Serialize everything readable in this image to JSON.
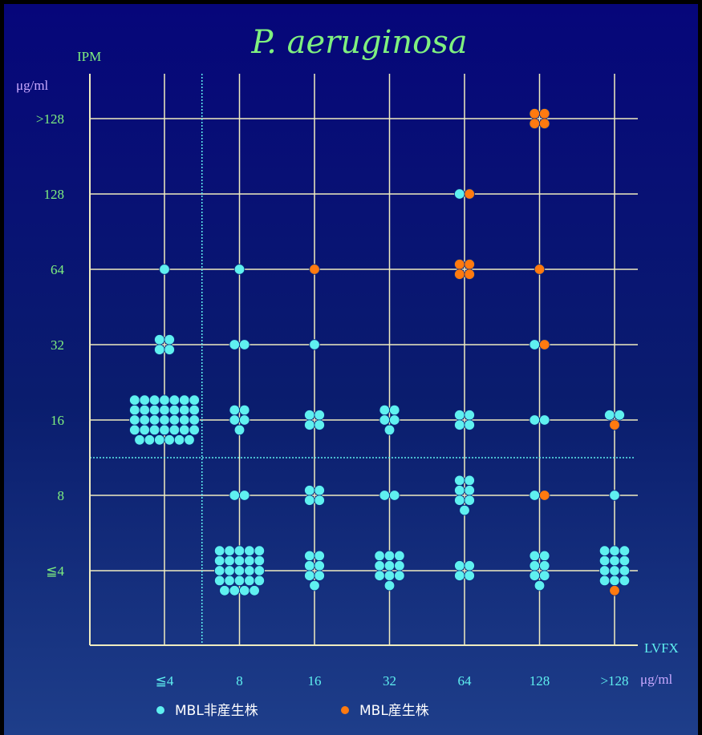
{
  "chart_data": {
    "type": "scatter",
    "title": "P. aeruginosa",
    "ylabel": "IPM",
    "yunit": "μg/ml",
    "xlabel": "LVFX",
    "xunit": "μg/ml",
    "x_categories": [
      "≦4",
      "8",
      "16",
      "32",
      "64",
      "128",
      ">128"
    ],
    "y_categories": [
      "≦4",
      "8",
      "16",
      "32",
      "64",
      "128",
      ">128"
    ],
    "breakpoints": {
      "x_between": [
        "≦4",
        "8"
      ],
      "y_between": [
        "8",
        "16"
      ]
    },
    "grid": true,
    "legend_position": "bottom",
    "series": [
      {
        "name": "MBL非産生株",
        "color": "#5ff0f0",
        "points": [
          {
            "x": "≦4",
            "y": "16",
            "count": 34
          },
          {
            "x": "≦4",
            "y": "32",
            "count": 4
          },
          {
            "x": "≦4",
            "y": "64",
            "count": 1
          },
          {
            "x": "8",
            "y": "≦4",
            "count": 24
          },
          {
            "x": "8",
            "y": "8",
            "count": 2
          },
          {
            "x": "8",
            "y": "16",
            "count": 5
          },
          {
            "x": "8",
            "y": "32",
            "count": 2
          },
          {
            "x": "8",
            "y": "64",
            "count": 1
          },
          {
            "x": "16",
            "y": "≦4",
            "count": 7
          },
          {
            "x": "16",
            "y": "8",
            "count": 4
          },
          {
            "x": "16",
            "y": "16",
            "count": 4
          },
          {
            "x": "16",
            "y": "32",
            "count": 1
          },
          {
            "x": "32",
            "y": "≦4",
            "count": 10
          },
          {
            "x": "32",
            "y": "8",
            "count": 2
          },
          {
            "x": "32",
            "y": "16",
            "count": 5
          },
          {
            "x": "64",
            "y": "≦4",
            "count": 4
          },
          {
            "x": "64",
            "y": "8",
            "count": 7
          },
          {
            "x": "64",
            "y": "16",
            "count": 4
          },
          {
            "x": "64",
            "y": "128",
            "count": 1
          },
          {
            "x": "128",
            "y": "≦4",
            "count": 7
          },
          {
            "x": "128",
            "y": "8",
            "count": 1
          },
          {
            "x": "128",
            "y": "16",
            "count": 2
          },
          {
            "x": "128",
            "y": "32",
            "count": 1
          },
          {
            "x": ">128",
            "y": "≦4",
            "count": 12
          },
          {
            "x": ">128",
            "y": "8",
            "count": 1
          },
          {
            "x": ">128",
            "y": "16",
            "count": 2
          }
        ]
      },
      {
        "name": "MBL産生株",
        "color": "#ff7a10",
        "points": [
          {
            "x": "16",
            "y": "64",
            "count": 1
          },
          {
            "x": "64",
            "y": "64",
            "count": 4
          },
          {
            "x": "64",
            "y": "128",
            "count": 1
          },
          {
            "x": "128",
            "y": ">128",
            "count": 4
          },
          {
            "x": "128",
            "y": "64",
            "count": 1
          },
          {
            "x": "128",
            "y": "32",
            "count": 1
          },
          {
            "x": "128",
            "y": "8",
            "count": 1
          },
          {
            "x": ">128",
            "y": "16",
            "count": 1
          },
          {
            "x": ">128",
            "y": "≦4",
            "count": 1
          }
        ]
      }
    ],
    "colors": {
      "grid": "#f0ecc0",
      "breakpoint": "#5ff0f0",
      "y_ticks": "#7ff07f",
      "x_ticks": "#5ff0f0",
      "unit_label": "#c8a8ff"
    }
  }
}
